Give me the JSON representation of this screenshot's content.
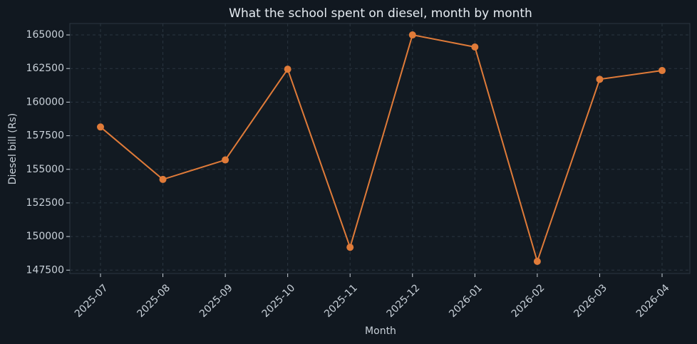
{
  "chart_data": {
    "type": "line",
    "title": "What the school spent on diesel, month by month",
    "x_label": "Month",
    "y_label": "Diesel bill (Rs)",
    "categories": [
      "2025-07",
      "2025-08",
      "2025-09",
      "2025-10",
      "2025-11",
      "2025-12",
      "2026-01",
      "2026-02",
      "2026-03",
      "2026-04"
    ],
    "series": [
      {
        "color": "#e07b39",
        "values": [
          158150,
          154250,
          155700,
          162450,
          149200,
          165000,
          164100,
          148150,
          161700,
          162350
        ]
      }
    ],
    "ylim": [
      147250,
      165850
    ],
    "yticks": [
      147500,
      150000,
      152500,
      155000,
      157500,
      160000,
      162500,
      165000
    ],
    "grid": true
  }
}
